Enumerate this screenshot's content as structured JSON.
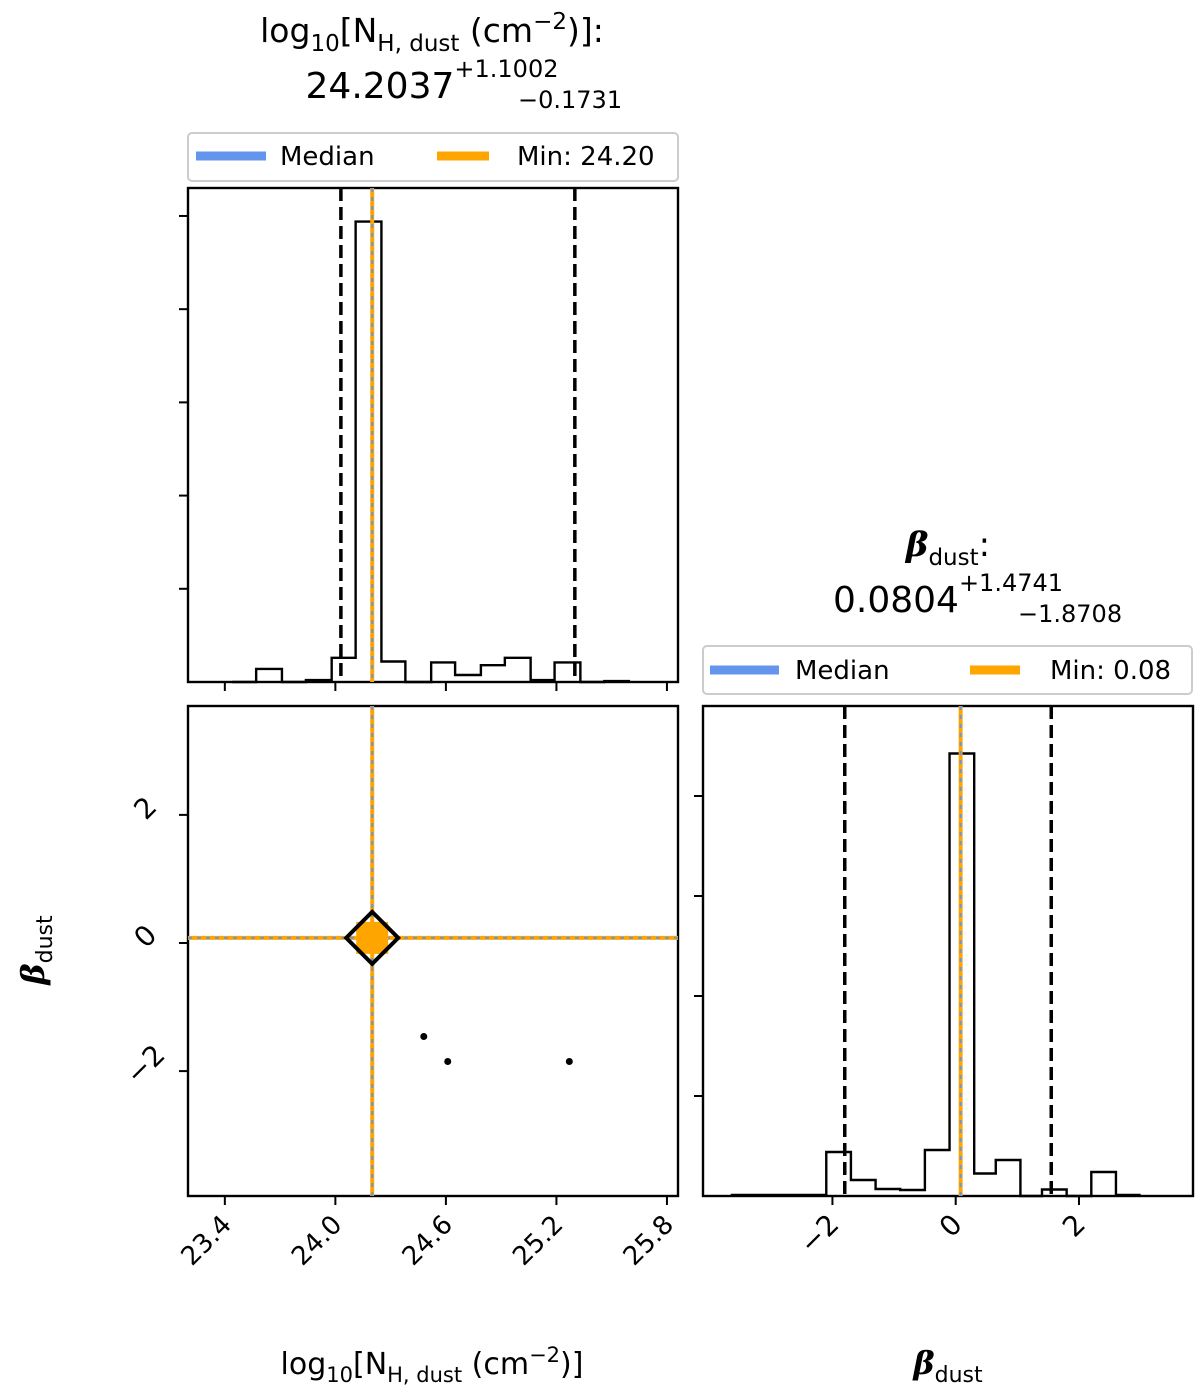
{
  "chart_data": [
    {
      "type": "histogram",
      "panel": "top-left",
      "title": {
        "line1": {
          "main": "log",
          "sub": "10",
          "bracket": "[N",
          "sub2": "H, dust",
          "unit": " (cm",
          "sup": "−2",
          "close": ")]:"
        },
        "line2": {
          "value": "24.2037",
          "plus": "+1.1002",
          "minus": "−0.1731"
        }
      },
      "legend": {
        "placement": "top",
        "entries": [
          {
            "label": "Median",
            "color": "#6495ED"
          },
          {
            "label": "Min: 24.20",
            "color": "#FFA500"
          }
        ]
      },
      "xlim": [
        23.2,
        25.86
      ],
      "bins": [
        {
          "x0": 23.44,
          "x1": 23.57,
          "count": 0
        },
        {
          "x0": 23.57,
          "x1": 23.71,
          "count": 0.28
        },
        {
          "x0": 23.71,
          "x1": 23.84,
          "count": 0
        },
        {
          "x0": 23.84,
          "x1": 23.98,
          "count": 0.04
        },
        {
          "x0": 23.98,
          "x1": 24.11,
          "count": 0.52
        },
        {
          "x0": 24.11,
          "x1": 24.25,
          "count": 9.88
        },
        {
          "x0": 24.25,
          "x1": 24.38,
          "count": 0.44
        },
        {
          "x0": 24.38,
          "x1": 24.52,
          "count": 0
        },
        {
          "x0": 24.52,
          "x1": 24.65,
          "count": 0.42
        },
        {
          "x0": 24.65,
          "x1": 24.79,
          "count": 0.15
        },
        {
          "x0": 24.79,
          "x1": 24.92,
          "count": 0.36
        },
        {
          "x0": 24.92,
          "x1": 25.06,
          "count": 0.52
        },
        {
          "x0": 25.06,
          "x1": 25.19,
          "count": 0.04
        },
        {
          "x0": 25.19,
          "x1": 25.33,
          "count": 0.42
        },
        {
          "x0": 25.33,
          "x1": 25.46,
          "count": 0
        },
        {
          "x0": 25.46,
          "x1": 25.6,
          "count": 0.02
        }
      ],
      "ylim": [
        0,
        10.6
      ],
      "quantiles": [
        24.03,
        25.3
      ],
      "median": 24.2,
      "min": 24.2
    },
    {
      "type": "scatter",
      "panel": "bottom-left",
      "xlabel": {
        "main": "log",
        "sub": "10",
        "bracket": "[N",
        "sub2": "H, dust",
        "unit": " (cm",
        "sup": "−2",
        "close": ")]"
      },
      "ylabel": {
        "main": "β",
        "sub": "dust"
      },
      "xlim": [
        23.2,
        25.86
      ],
      "ylim": [
        -3.95,
        3.7
      ],
      "xticks": [
        "23.4",
        "24.0",
        "24.6",
        "25.2",
        "25.8"
      ],
      "yticks": [
        "−2",
        "0",
        "2"
      ],
      "points": [
        {
          "x": 24.48,
          "y": -1.46
        },
        {
          "x": 24.61,
          "y": -1.85
        },
        {
          "x": 25.27,
          "y": -1.85
        }
      ],
      "median": {
        "x": 24.2,
        "y": 0.08
      },
      "min": {
        "x": 24.2,
        "y": 0.08
      }
    },
    {
      "type": "histogram",
      "panel": "bottom-right",
      "title": {
        "line1": {
          "main": "β",
          "sub": "dust",
          "close": ":"
        },
        "line2": {
          "value": "0.0804",
          "plus": "+1.4741",
          "minus": "−1.8708"
        }
      },
      "legend": {
        "placement": "top",
        "entries": [
          {
            "label": "Median",
            "color": "#6495ED"
          },
          {
            "label": "Min: 0.08",
            "color": "#FFA500"
          }
        ]
      },
      "xlabel": {
        "main": "β",
        "sub": "dust"
      },
      "xlim": [
        -4.1,
        3.85
      ],
      "xticks": [
        "−2",
        "0",
        "2"
      ],
      "bins": [
        {
          "x0": -3.65,
          "x1": -2.1,
          "count": 0.02
        },
        {
          "x0": -2.1,
          "x1": -1.7,
          "count": 0.88
        },
        {
          "x0": -1.7,
          "x1": -1.3,
          "count": 0.32
        },
        {
          "x0": -1.3,
          "x1": -0.9,
          "count": 0.14
        },
        {
          "x0": -0.9,
          "x1": -0.5,
          "count": 0.12
        },
        {
          "x0": -0.5,
          "x1": -0.1,
          "count": 0.92
        },
        {
          "x0": -0.1,
          "x1": 0.3,
          "count": 8.85
        },
        {
          "x0": 0.3,
          "x1": 0.65,
          "count": 0.45
        },
        {
          "x0": 0.65,
          "x1": 1.05,
          "count": 0.72
        },
        {
          "x0": 1.05,
          "x1": 1.4,
          "count": 0
        },
        {
          "x0": 1.4,
          "x1": 1.8,
          "count": 0.13
        },
        {
          "x0": 1.8,
          "x1": 2.2,
          "count": 0
        },
        {
          "x0": 2.2,
          "x1": 2.6,
          "count": 0.48
        },
        {
          "x0": 2.6,
          "x1": 3.0,
          "count": 0.02
        }
      ],
      "ylim": [
        0,
        9.8
      ],
      "quantiles": [
        -1.8,
        1.55
      ],
      "median": 0.08,
      "min": 0.08
    }
  ]
}
